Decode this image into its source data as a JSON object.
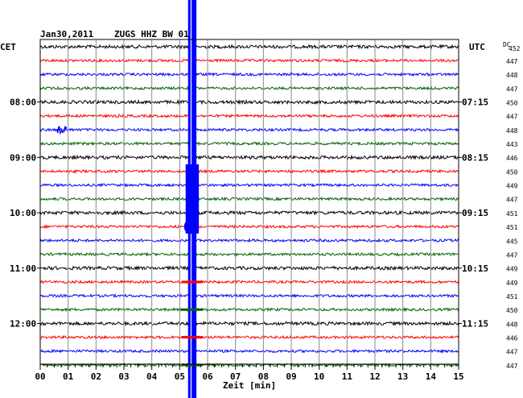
{
  "header": {
    "date": "Jan30,2011",
    "station": "ZUGS HHZ BW 01",
    "left_label": "CET",
    "right_label": "UTC",
    "dc_label": "DC"
  },
  "chart_data": {
    "type": "line",
    "title": "Jan30,2011  ZUGS HHZ BW 01",
    "xlabel": "Zeit [min]",
    "xlim": [
      0,
      15
    ],
    "x_ticks": [
      "00",
      "01",
      "02",
      "03",
      "04",
      "05",
      "06",
      "07",
      "08",
      "09",
      "10",
      "11",
      "12",
      "13",
      "14",
      "15"
    ],
    "left_time_labels": [
      {
        "row": 4,
        "label": "08:00"
      },
      {
        "row": 8,
        "label": "09:00"
      },
      {
        "row": 12,
        "label": "10:00"
      },
      {
        "row": 16,
        "label": "11:00"
      },
      {
        "row": 20,
        "label": "12:00"
      }
    ],
    "right_time_labels": [
      {
        "row": 4,
        "label": "07:15"
      },
      {
        "row": 8,
        "label": "08:15"
      },
      {
        "row": 12,
        "label": "09:15"
      },
      {
        "row": 16,
        "label": "10:15"
      },
      {
        "row": 20,
        "label": "11:15"
      }
    ],
    "row_colors": [
      "#000000",
      "#ff0000",
      "#0000ff",
      "#006400"
    ],
    "dc_values": [
      "452",
      "447",
      "448",
      "447",
      "450",
      "447",
      "448",
      "443",
      "446",
      "450",
      "449",
      "447",
      "451",
      "451",
      "445",
      "447",
      "449",
      "449",
      "451",
      "450",
      "448",
      "446",
      "447",
      "447"
    ],
    "event": {
      "start_min": 5.3,
      "end_min": 5.6,
      "color": "#0000ff"
    },
    "grid": true
  }
}
